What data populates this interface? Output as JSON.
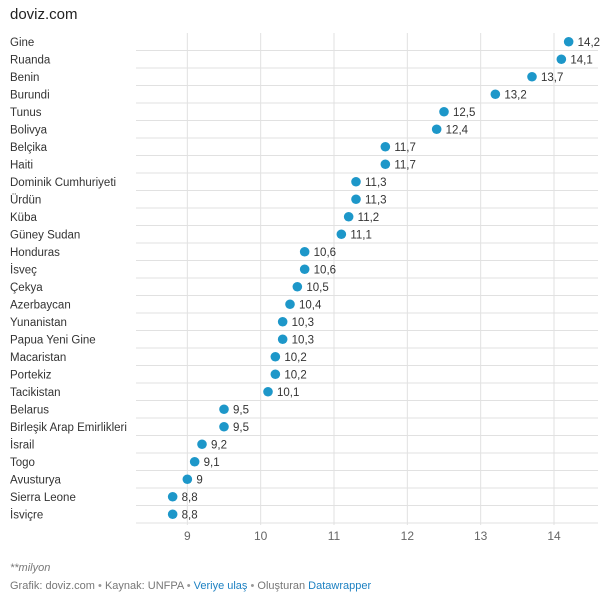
{
  "header": {
    "site_title": "doviz.com"
  },
  "chart_data": {
    "type": "scatter",
    "categories": [
      "Gine",
      "Ruanda",
      "Benin",
      "Burundi",
      "Tunus",
      "Bolivya",
      "Belçika",
      "Haiti",
      "Dominik Cumhuriyeti",
      "Ürdün",
      "Küba",
      "Güney Sudan",
      "Honduras",
      "İsveç",
      "Çekya",
      "Azerbaycan",
      "Yunanistan",
      "Papua Yeni Gine",
      "Macaristan",
      "Portekiz",
      "Tacikistan",
      "Belarus",
      "Birleşik Arap Emirlikleri",
      "İsrail",
      "Togo",
      "Avusturya",
      "Sierra Leone",
      "İsviçre"
    ],
    "values": [
      14.2,
      14.1,
      13.7,
      13.2,
      12.5,
      12.4,
      11.7,
      11.7,
      11.3,
      11.3,
      11.2,
      11.1,
      10.6,
      10.6,
      10.5,
      10.4,
      10.3,
      10.3,
      10.2,
      10.2,
      10.1,
      9.5,
      9.5,
      9.2,
      9.1,
      9.0,
      8.8,
      8.8
    ],
    "value_labels": [
      "14,2",
      "14,1",
      "13,7",
      "13,2",
      "12,5",
      "12,4",
      "11,7",
      "11,7",
      "11,3",
      "11,3",
      "11,2",
      "11,1",
      "10,6",
      "10,6",
      "10,5",
      "10,4",
      "10,3",
      "10,3",
      "10,2",
      "10,2",
      "10,1",
      "9,5",
      "9,5",
      "9,2",
      "9,1",
      "9",
      "8,8",
      "8,8"
    ],
    "xticks": [
      9,
      10,
      11,
      12,
      13,
      14
    ],
    "xlim": [
      8.3,
      14.6
    ],
    "grid": true,
    "dot_color": "#1d97c9",
    "grid_color": "#e1e1e1"
  },
  "footer": {
    "note": "**milyon",
    "credit_prefix": "Grafik: doviz.com",
    "sep": "•",
    "source": "Kaynak: UNFPA",
    "data_link": "Veriye ulaş",
    "made_with": "Oluşturan",
    "tool_link": "Datawrapper"
  }
}
